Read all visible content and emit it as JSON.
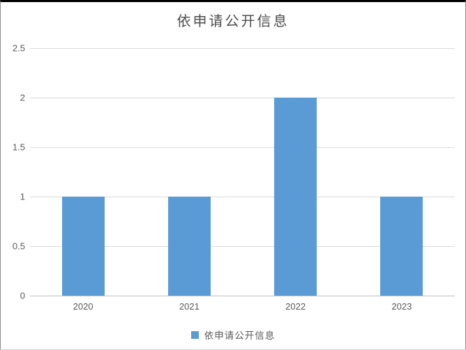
{
  "chart_data": {
    "type": "bar",
    "title": "依申请公开信息",
    "categories": [
      "2020",
      "2021",
      "2022",
      "2023"
    ],
    "series": [
      {
        "name": "依申请公开信息",
        "values": [
          1,
          1,
          2,
          1
        ]
      }
    ],
    "xlabel": "",
    "ylabel": "",
    "ylim": [
      0,
      2.5
    ],
    "ytick_step": 0.5,
    "yticks": [
      "0",
      "0.5",
      "1",
      "1.5",
      "2",
      "2.5"
    ],
    "grid": true,
    "legend_position": "bottom",
    "colors": {
      "bar": "#5b9bd5",
      "gridline": "#d9d9d9",
      "axis_line": "#bfbfbf",
      "tick_text": "#595959",
      "title_text": "#4d4d4d"
    }
  }
}
